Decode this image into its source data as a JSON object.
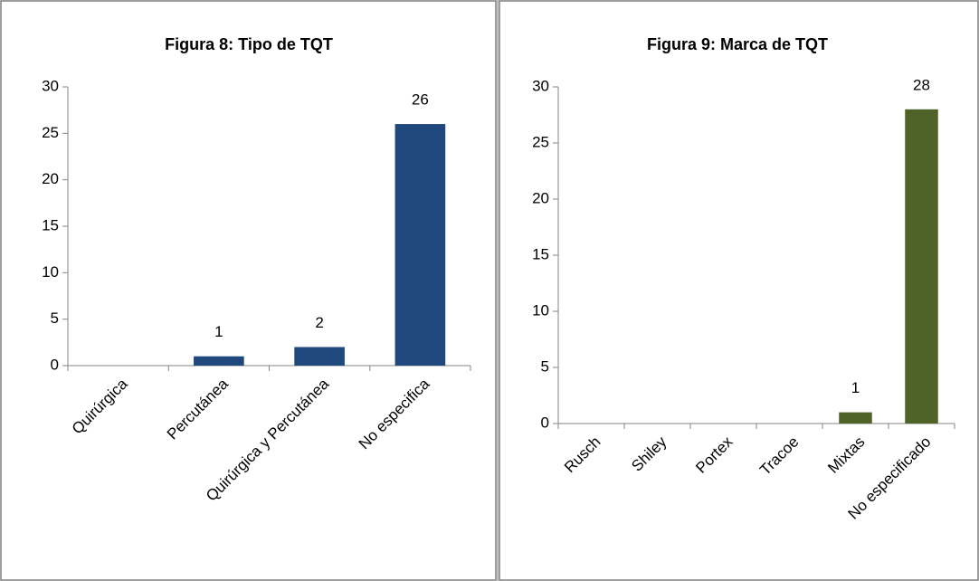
{
  "chart_data": [
    {
      "type": "bar",
      "title": "Figura 8: Tipo de TQT",
      "categories": [
        "Quirúrgica",
        "Percutánea",
        "Quirúrgica y Percutánea",
        "No especifica"
      ],
      "values": [
        0,
        1,
        2,
        26
      ],
      "value_labels": [
        null,
        "1",
        "2",
        "26"
      ],
      "color": "#1f497d",
      "ylim": [
        0,
        30
      ],
      "yticks": [
        0,
        5,
        10,
        15,
        20,
        25,
        30
      ],
      "grid": false
    },
    {
      "type": "bar",
      "title": "Figura 9: Marca de TQT",
      "categories": [
        "Rusch",
        "Shiley",
        "Portex",
        "Tracoe",
        "Mixtas",
        "No especificado"
      ],
      "values": [
        0,
        0,
        0,
        0,
        1,
        28
      ],
      "value_labels": [
        null,
        null,
        null,
        null,
        "1",
        "28"
      ],
      "color": "#4f6228",
      "ylim": [
        0,
        30
      ],
      "yticks": [
        0,
        5,
        10,
        15,
        20,
        25,
        30
      ],
      "grid": false
    }
  ]
}
